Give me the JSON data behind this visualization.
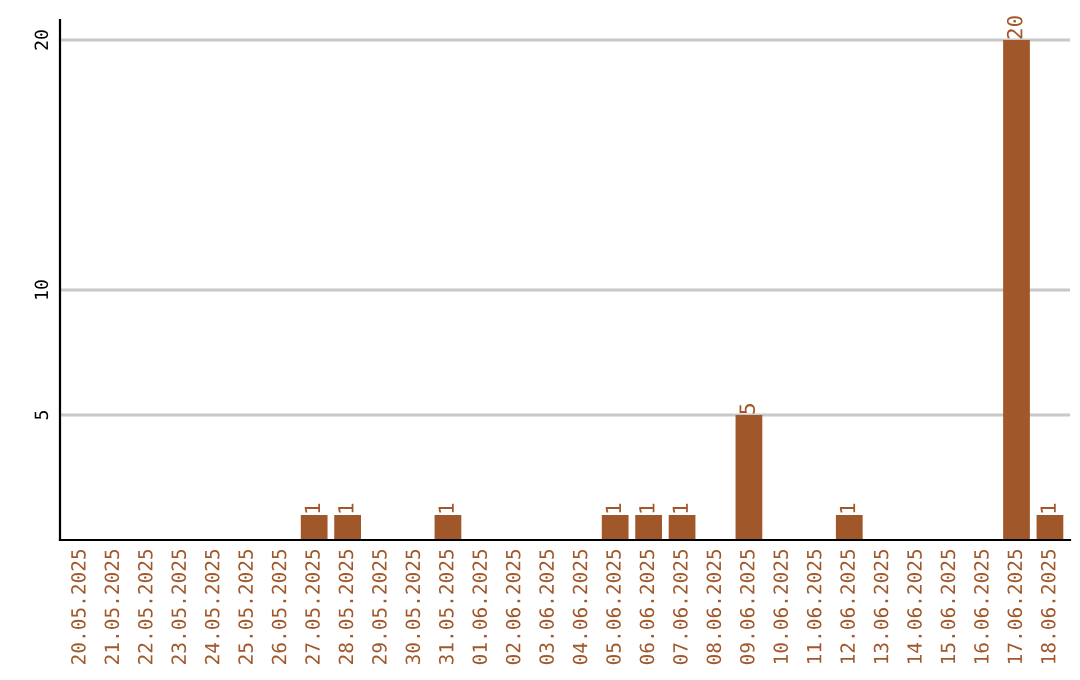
{
  "chart_data": {
    "type": "bar",
    "categories": [
      "20.05.2025",
      "21.05.2025",
      "22.05.2025",
      "23.05.2025",
      "24.05.2025",
      "25.05.2025",
      "26.05.2025",
      "27.05.2025",
      "28.05.2025",
      "29.05.2025",
      "30.05.2025",
      "31.05.2025",
      "01.06.2025",
      "02.06.2025",
      "03.06.2025",
      "04.06.2025",
      "05.06.2025",
      "06.06.2025",
      "07.06.2025",
      "08.06.2025",
      "09.06.2025",
      "10.06.2025",
      "11.06.2025",
      "12.06.2025",
      "13.06.2025",
      "14.06.2025",
      "15.06.2025",
      "16.06.2025",
      "17.06.2025",
      "18.06.2025"
    ],
    "values": [
      0,
      0,
      0,
      0,
      0,
      0,
      0,
      1,
      1,
      0,
      0,
      1,
      0,
      0,
      0,
      0,
      1,
      1,
      1,
      0,
      5,
      0,
      0,
      1,
      0,
      0,
      0,
      0,
      20,
      1
    ],
    "value_labels": [
      null,
      null,
      null,
      null,
      null,
      null,
      null,
      "1",
      "1",
      null,
      null,
      "1",
      null,
      null,
      null,
      null,
      "1",
      "1",
      "1",
      null,
      "5",
      null,
      null,
      "1",
      null,
      null,
      null,
      null,
      "20",
      "1"
    ],
    "color": "#a0572a",
    "ylim": [
      0,
      20.8
    ],
    "yticks": [
      5,
      10,
      20
    ],
    "grid": "y"
  }
}
